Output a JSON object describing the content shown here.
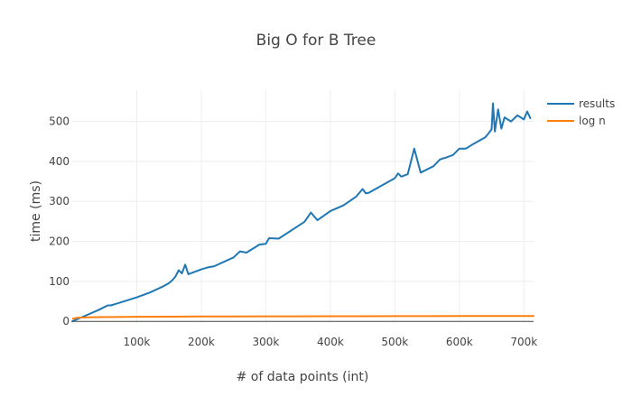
{
  "chart_data": {
    "type": "line",
    "title": "Big O for B Tree",
    "xlabel": "# of data points (int)",
    "ylabel": "time (ms)",
    "xlim": [
      0,
      715000
    ],
    "ylim": [
      -4,
      578
    ],
    "xticks": [
      100000,
      200000,
      300000,
      400000,
      500000,
      600000,
      700000
    ],
    "xtick_labels": [
      "100k",
      "200k",
      "300k",
      "400k",
      "500k",
      "600k",
      "700k"
    ],
    "yticks": [
      0,
      100,
      200,
      300,
      400,
      500
    ],
    "ytick_labels": [
      "0",
      "100",
      "200",
      "300",
      "400",
      "500"
    ],
    "grid": true,
    "legend_position": "top-right",
    "series": [
      {
        "name": "results",
        "color": "#1f77b4",
        "x": [
          0,
          20000,
          40000,
          50000,
          55000,
          60000,
          80000,
          100000,
          120000,
          140000,
          150000,
          155000,
          160000,
          165000,
          170000,
          175000,
          180000,
          200000,
          210000,
          220000,
          250000,
          260000,
          270000,
          290000,
          300000,
          305000,
          320000,
          340000,
          360000,
          370000,
          380000,
          400000,
          420000,
          440000,
          450000,
          455000,
          460000,
          480000,
          500000,
          505000,
          510000,
          520000,
          530000,
          540000,
          560000,
          570000,
          580000,
          590000,
          600000,
          610000,
          620000,
          640000,
          645000,
          650000,
          652000,
          655000,
          660000,
          665000,
          670000,
          680000,
          690000,
          700000,
          705000,
          710000
        ],
        "y": [
          0,
          14,
          28,
          36,
          40,
          40,
          50,
          60,
          72,
          87,
          96,
          103,
          112,
          128,
          120,
          142,
          118,
          130,
          135,
          138,
          160,
          175,
          172,
          192,
          194,
          208,
          207,
          228,
          249,
          272,
          253,
          276,
          290,
          312,
          331,
          320,
          322,
          340,
          358,
          370,
          362,
          368,
          432,
          372,
          388,
          405,
          410,
          416,
          432,
          432,
          442,
          460,
          470,
          480,
          545,
          475,
          530,
          482,
          510,
          500,
          515,
          505,
          525,
          508
        ]
      },
      {
        "name": "log n",
        "color": "#ff7f0e",
        "x": [
          1000,
          5000,
          10000,
          20000,
          40000,
          60000,
          80000,
          100000,
          150000,
          200000,
          250000,
          300000,
          350000,
          400000,
          450000,
          500000,
          550000,
          600000,
          650000,
          700000,
          715000
        ],
        "y": [
          6.9,
          8.5,
          9.2,
          9.9,
          10.6,
          11.0,
          11.3,
          11.5,
          11.9,
          12.2,
          12.4,
          12.6,
          12.8,
          12.9,
          13.0,
          13.1,
          13.2,
          13.3,
          13.4,
          13.5,
          13.5
        ]
      }
    ]
  }
}
